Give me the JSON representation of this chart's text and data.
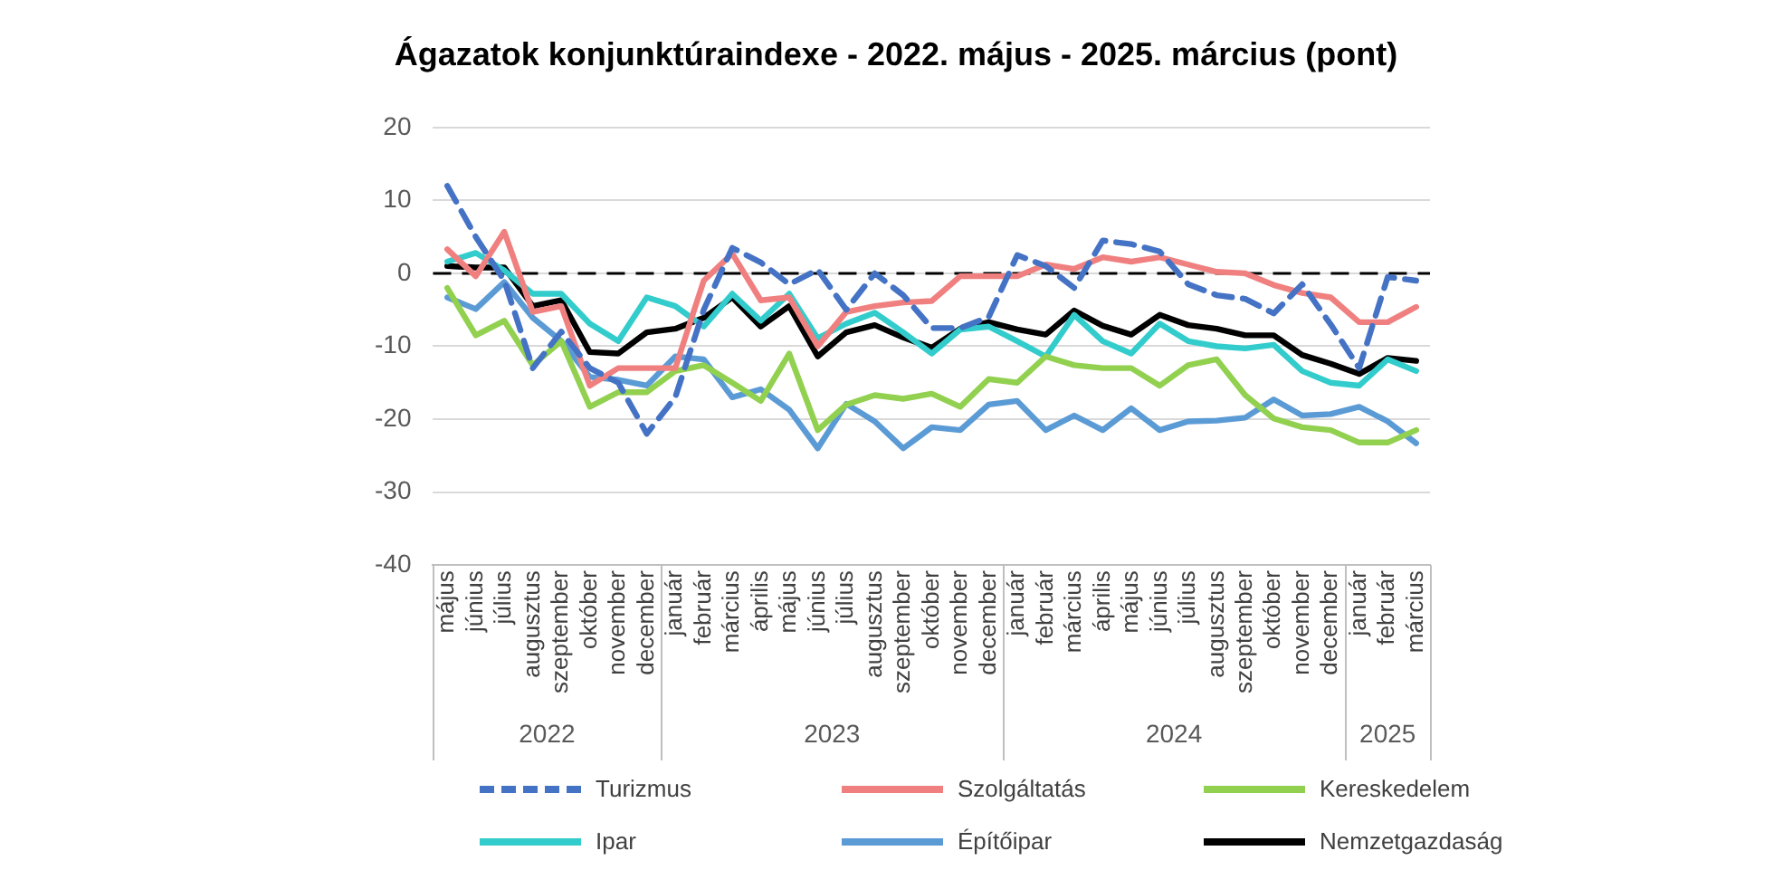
{
  "chart_data": {
    "type": "line",
    "title": "Ágazatok konjunktúraindexe - 2022. május - 2025. március (pont)",
    "x": [
      "2022-05",
      "2022-06",
      "2022-07",
      "2022-08",
      "2022-09",
      "2022-10",
      "2022-11",
      "2022-12",
      "2023-01",
      "2023-02",
      "2023-03",
      "2023-04",
      "2023-05",
      "2023-06",
      "2023-07",
      "2023-08",
      "2023-09",
      "2023-10",
      "2023-11",
      "2023-12",
      "2024-01",
      "2024-02",
      "2024-03",
      "2024-04",
      "2024-05",
      "2024-06",
      "2024-07",
      "2024-08",
      "2024-09",
      "2024-10",
      "2024-11",
      "2024-12",
      "2025-01",
      "2025-02",
      "2025-03"
    ],
    "xlim": [
      "2022-04-16",
      "2025-03-16"
    ],
    "annotations": [
      "2022",
      "2023",
      "2024",
      "2025"
    ],
    "xticks": [
      {
        "value": "2022-05",
        "label": "május"
      },
      {
        "value": "2022-06",
        "label": "június"
      },
      {
        "value": "2022-07",
        "label": "július"
      },
      {
        "value": "2022-08",
        "label": "augusztus"
      },
      {
        "value": "2022-09",
        "label": "szeptember"
      },
      {
        "value": "2022-10",
        "label": "október"
      },
      {
        "value": "2022-11",
        "label": "november"
      },
      {
        "value": "2022-12",
        "label": "december"
      },
      {
        "value": "2023-01",
        "label": "január"
      },
      {
        "value": "2023-02",
        "label": "február"
      },
      {
        "value": "2023-03",
        "label": "március"
      },
      {
        "value": "2023-04",
        "label": "április"
      },
      {
        "value": "2023-05",
        "label": "május"
      },
      {
        "value": "2023-06",
        "label": "június"
      },
      {
        "value": "2023-07",
        "label": "július"
      },
      {
        "value": "2023-08",
        "label": "augusztus"
      },
      {
        "value": "2023-09",
        "label": "szeptember"
      },
      {
        "value": "2023-10",
        "label": "október"
      },
      {
        "value": "2023-11",
        "label": "november"
      },
      {
        "value": "2023-12",
        "label": "december"
      },
      {
        "value": "2024-01",
        "label": "január"
      },
      {
        "value": "2024-02",
        "label": "február"
      },
      {
        "value": "2024-03",
        "label": "március"
      },
      {
        "value": "2024-04",
        "label": "április"
      },
      {
        "value": "2024-05",
        "label": "május"
      },
      {
        "value": "2024-06",
        "label": "június"
      },
      {
        "value": "2024-07",
        "label": "július"
      },
      {
        "value": "2024-08",
        "label": "augusztus"
      },
      {
        "value": "2024-09",
        "label": "szeptember"
      },
      {
        "value": "2024-10",
        "label": "október"
      },
      {
        "value": "2024-11",
        "label": "november"
      },
      {
        "value": "2024-12",
        "label": "december"
      },
      {
        "value": "2025-01",
        "label": "január"
      },
      {
        "value": "2025-02",
        "label": "február"
      },
      {
        "value": "2025-03",
        "label": "március"
      }
    ],
    "ylim": [
      -40,
      20
    ],
    "yticks": [
      -40,
      -30,
      -20,
      -10,
      0,
      10,
      20
    ],
    "grid": "y",
    "legend": "bottom",
    "marker": "none",
    "ref_lines": [
      {
        "axis": "y",
        "value": 0,
        "color": "#000000",
        "line_style": "dashed"
      }
    ],
    "series": [
      {
        "name": "Turizmus",
        "color": "#4472c4",
        "line_style": "dashed",
        "values": [
          12,
          5,
          -1,
          -13,
          -8,
          -13,
          -15,
          -22,
          -17,
          -5,
          3.5,
          1.5,
          -1.5,
          0.5,
          -5,
          0,
          -3,
          -7.5,
          -7.5,
          -6,
          2.5,
          1,
          -2,
          4.5,
          4,
          3,
          -1.5,
          -3,
          -3.5,
          -5.5,
          -1.5,
          -7,
          -13,
          -0.5,
          -1
        ]
      },
      {
        "name": "Szolgáltatás",
        "color": "#f08080",
        "values": [
          3.3,
          -0.4,
          5.7,
          -5.3,
          -4.5,
          -15.4,
          -13,
          -13,
          -13,
          -1,
          2.7,
          -3.7,
          -3.3,
          -10,
          -5.3,
          -4.5,
          -4,
          -3.8,
          -0.4,
          -0.4,
          -0.4,
          1.2,
          0.6,
          2.2,
          1.6,
          2.2,
          1.2,
          0.2,
          0,
          -1.6,
          -2.7,
          -3.3,
          -6.7,
          -6.7,
          -4.6
        ]
      },
      {
        "name": "Kereskedelem",
        "color": "#92d050",
        "values": [
          -2,
          -8.5,
          -6.5,
          -12.6,
          -9.3,
          -18.3,
          -16.3,
          -16.3,
          -13.4,
          -12.6,
          -15,
          -17.5,
          -11,
          -21.5,
          -18,
          -16.7,
          -17.2,
          -16.5,
          -18.3,
          -14.5,
          -15,
          -11.4,
          -12.6,
          -13,
          -13,
          -15.4,
          -12.6,
          -11.8,
          -16.7,
          -19.9,
          -21.1,
          -21.5,
          -23.2,
          -23.2,
          -21.5
        ]
      },
      {
        "name": "Ipar",
        "color": "#33cccc",
        "values": [
          1.6,
          2.8,
          0.4,
          -2.8,
          -2.8,
          -6.9,
          -9.3,
          -3.3,
          -4.5,
          -7.3,
          -2.8,
          -6.5,
          -2.8,
          -8.9,
          -6.9,
          -5.4,
          -8.1,
          -11,
          -7.7,
          -7.3,
          -9.3,
          -11.4,
          -5.7,
          -9.3,
          -11,
          -6.9,
          -9.3,
          -10,
          -10.3,
          -9.8,
          -13.4,
          -15,
          -15.4,
          -11.8,
          -13.4
        ]
      },
      {
        "name": "Építőipar",
        "color": "#5b9bd5",
        "values": [
          -3.3,
          -4.9,
          -1.2,
          -6.1,
          -9.3,
          -14.2,
          -14.6,
          -15.4,
          -11.4,
          -11.8,
          -17,
          -15.9,
          -18.7,
          -24,
          -17.9,
          -20.3,
          -24,
          -21.1,
          -21.5,
          -18,
          -17.5,
          -21.5,
          -19.5,
          -21.5,
          -18.5,
          -21.5,
          -20.3,
          -20.2,
          -19.8,
          -17.3,
          -19.5,
          -19.3,
          -18.3,
          -20.3,
          -23.3
        ]
      },
      {
        "name": "Nemzetgazdaság",
        "color": "#000000",
        "values": [
          1,
          0.8,
          0.8,
          -4.5,
          -3.7,
          -10.8,
          -11,
          -8.1,
          -7.6,
          -6.1,
          -3.3,
          -7.3,
          -4.5,
          -11.4,
          -8.1,
          -7.1,
          -8.8,
          -10.2,
          -7.6,
          -6.7,
          -7.7,
          -8.4,
          -5.1,
          -7.2,
          -8.4,
          -5.7,
          -7.1,
          -7.6,
          -8.5,
          -8.5,
          -11.2,
          -12.4,
          -13.8,
          -11.6,
          -12
        ]
      }
    ]
  }
}
